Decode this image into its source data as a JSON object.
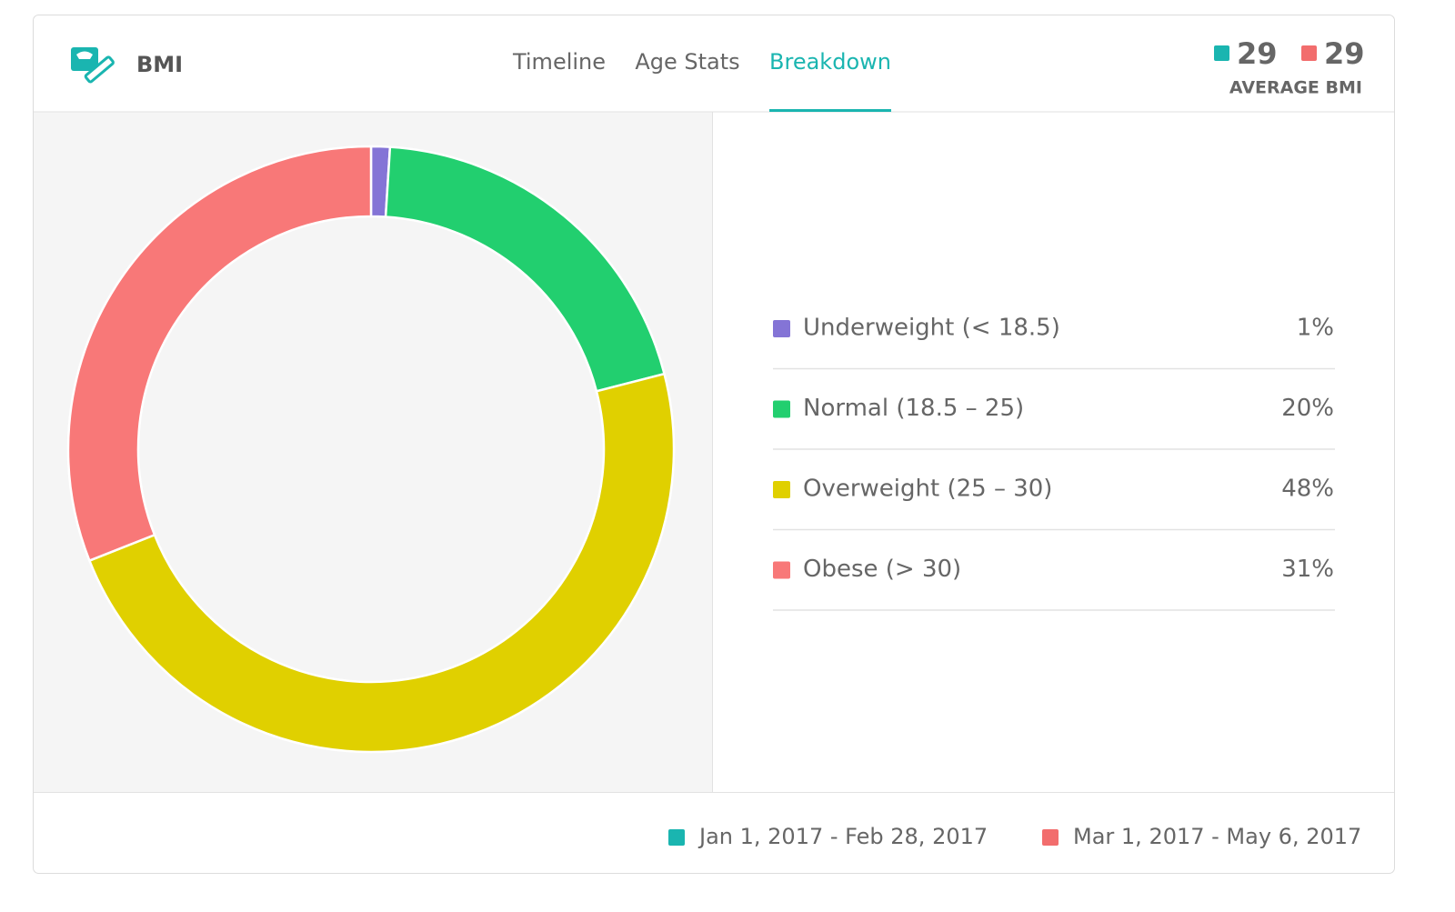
{
  "header": {
    "title": "BMI",
    "tabs": [
      "Timeline",
      "Age Stats",
      "Breakdown"
    ],
    "active_tab": 2,
    "averages": [
      {
        "value": 29,
        "color": "#1ab5b0"
      },
      {
        "value": 29,
        "color": "#f26d6d"
      }
    ],
    "averages_label": "AVERAGE BMI"
  },
  "chart_data": {
    "type": "pie",
    "categories": [
      "Underweight (< 18.5)",
      "Normal (18.5 – 25)",
      "Overweight (25 – 30)",
      "Obese (> 30)"
    ],
    "values": [
      1,
      20,
      48,
      31
    ],
    "value_labels": [
      "1%",
      "20%",
      "48%",
      "31%"
    ],
    "colors": [
      "#8474d6",
      "#22cf6f",
      "#e0d000",
      "#f87878"
    ]
  },
  "footer": {
    "periods": [
      {
        "label": "Jan 1, 2017 - Feb 28, 2017",
        "color": "#1ab5b0"
      },
      {
        "label": "Mar 1, 2017 - May 6, 2017",
        "color": "#f26d6d"
      }
    ]
  }
}
